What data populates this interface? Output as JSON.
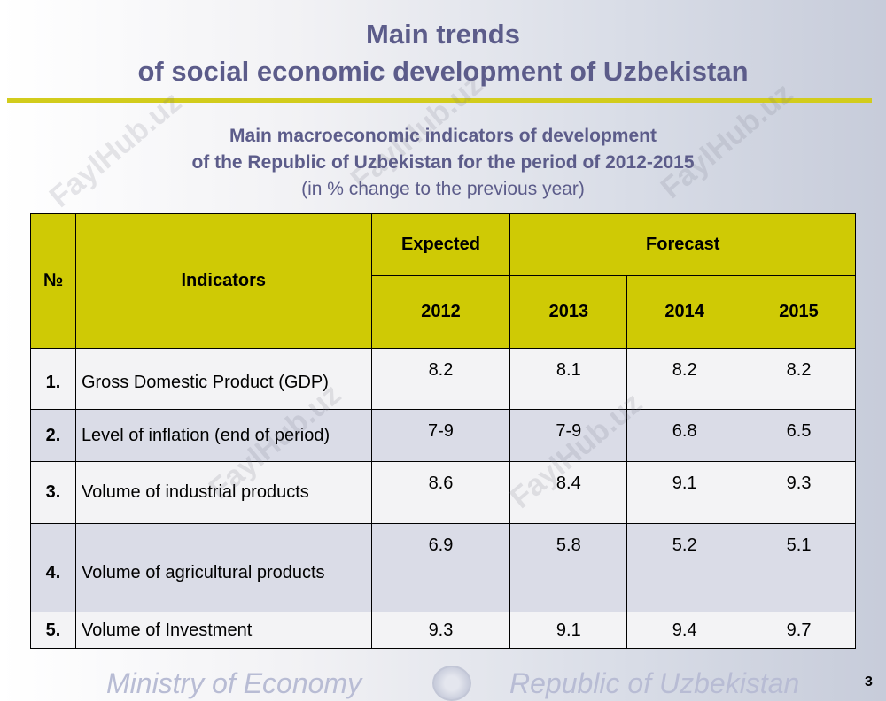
{
  "header": {
    "title_line1": "Main trends",
    "title_line2": "of social economic development of Uzbekistan"
  },
  "subtitle": {
    "line1": "Main macroeconomic indicators of development",
    "line2": "of the Republic of Uzbekistan for the period of 2012-2015",
    "line3": "(in % change to the previous year)"
  },
  "table": {
    "col_num": "№",
    "col_indicators": "Indicators",
    "col_expected": "Expected",
    "col_forecast": "Forecast",
    "years": [
      "2012",
      "2013",
      "2014",
      "2015"
    ],
    "rows": [
      {
        "num": "1.",
        "name": "Gross Domestic Product (GDP)",
        "values": [
          "8.2",
          "8.1",
          "8.2",
          "8.2"
        ]
      },
      {
        "num": "2.",
        "name": "Level of inflation (end of period)",
        "values": [
          "7-9",
          "7-9",
          "6.8",
          "6.5"
        ]
      },
      {
        "num": "3.",
        "name": "Volume of industrial products",
        "values": [
          "8.6",
          "8.4",
          "9.1",
          "9.3"
        ]
      },
      {
        "num": "4.",
        "name": "Volume of agricultural products",
        "values": [
          "6.9",
          "5.8",
          "5.2",
          "5.1"
        ]
      },
      {
        "num": "5.",
        "name": "Volume of Investment",
        "values": [
          "9.3",
          "9.1",
          "9.4",
          "9.7"
        ]
      }
    ]
  },
  "footer": {
    "left": "Ministry of Economy",
    "right": "Republic of Uzbekistan",
    "page": "3"
  },
  "watermark": "FaylHub.uz",
  "colors": {
    "title": "#5c5c8a",
    "accent_rule": "#d2cc1c",
    "header_fill": "#cfca05",
    "row_light": "#f3f3f5",
    "row_shaded": "#dadce7"
  }
}
